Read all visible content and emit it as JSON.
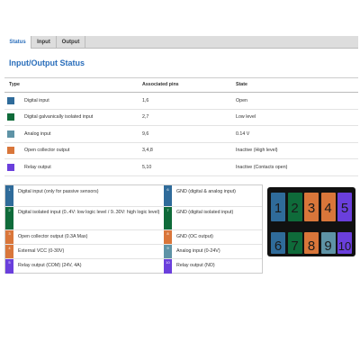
{
  "tabs": [
    "Status",
    "Input",
    "Output"
  ],
  "title": "Input/Output Status",
  "table": {
    "header": [
      "Type",
      "Associated pins",
      "State"
    ],
    "rows": [
      [
        "Digital input",
        "1,6",
        "Open"
      ],
      [
        "Digital galvanically isolated input",
        "2,7",
        "Low level"
      ],
      [
        "Analog input",
        "9,6",
        "0.14 V"
      ],
      [
        "Open collector output",
        "3,4,8",
        "Inactive (High level)"
      ],
      [
        "Relay output",
        "5,10",
        "Inactive (Contacts open)"
      ]
    ]
  },
  "legend": [
    [
      {
        "number": "1",
        "label": "Digital input (only for passive sensors)"
      },
      {
        "number": "6",
        "label": "GND (digital & analog input)"
      }
    ],
    [
      {
        "number": "2",
        "label": "Digital isolated input (0..4V: low logic level / 9..30V: high logic level)"
      },
      {
        "number": "7",
        "label": "GND (digital isolated input)"
      }
    ],
    [
      {
        "number": "3",
        "label": "Open collector output (0.3A Max)"
      },
      {
        "number": "8",
        "label": "GND (OC output)"
      }
    ],
    [
      {
        "number": "4",
        "label": "External VCC (0-30V)"
      },
      {
        "number": "9",
        "label": "Analog input (0-24V)"
      }
    ],
    [
      {
        "number": "5",
        "label": "Relay output (COM) (24V, 4A)"
      },
      {
        "number": "10",
        "label": "Relay output (NO)"
      }
    ]
  ],
  "connector": {
    "top": [
      "1",
      "2",
      "3",
      "4",
      "5"
    ],
    "bottom": [
      "6",
      "7",
      "8",
      "9",
      "10"
    ]
  }
}
